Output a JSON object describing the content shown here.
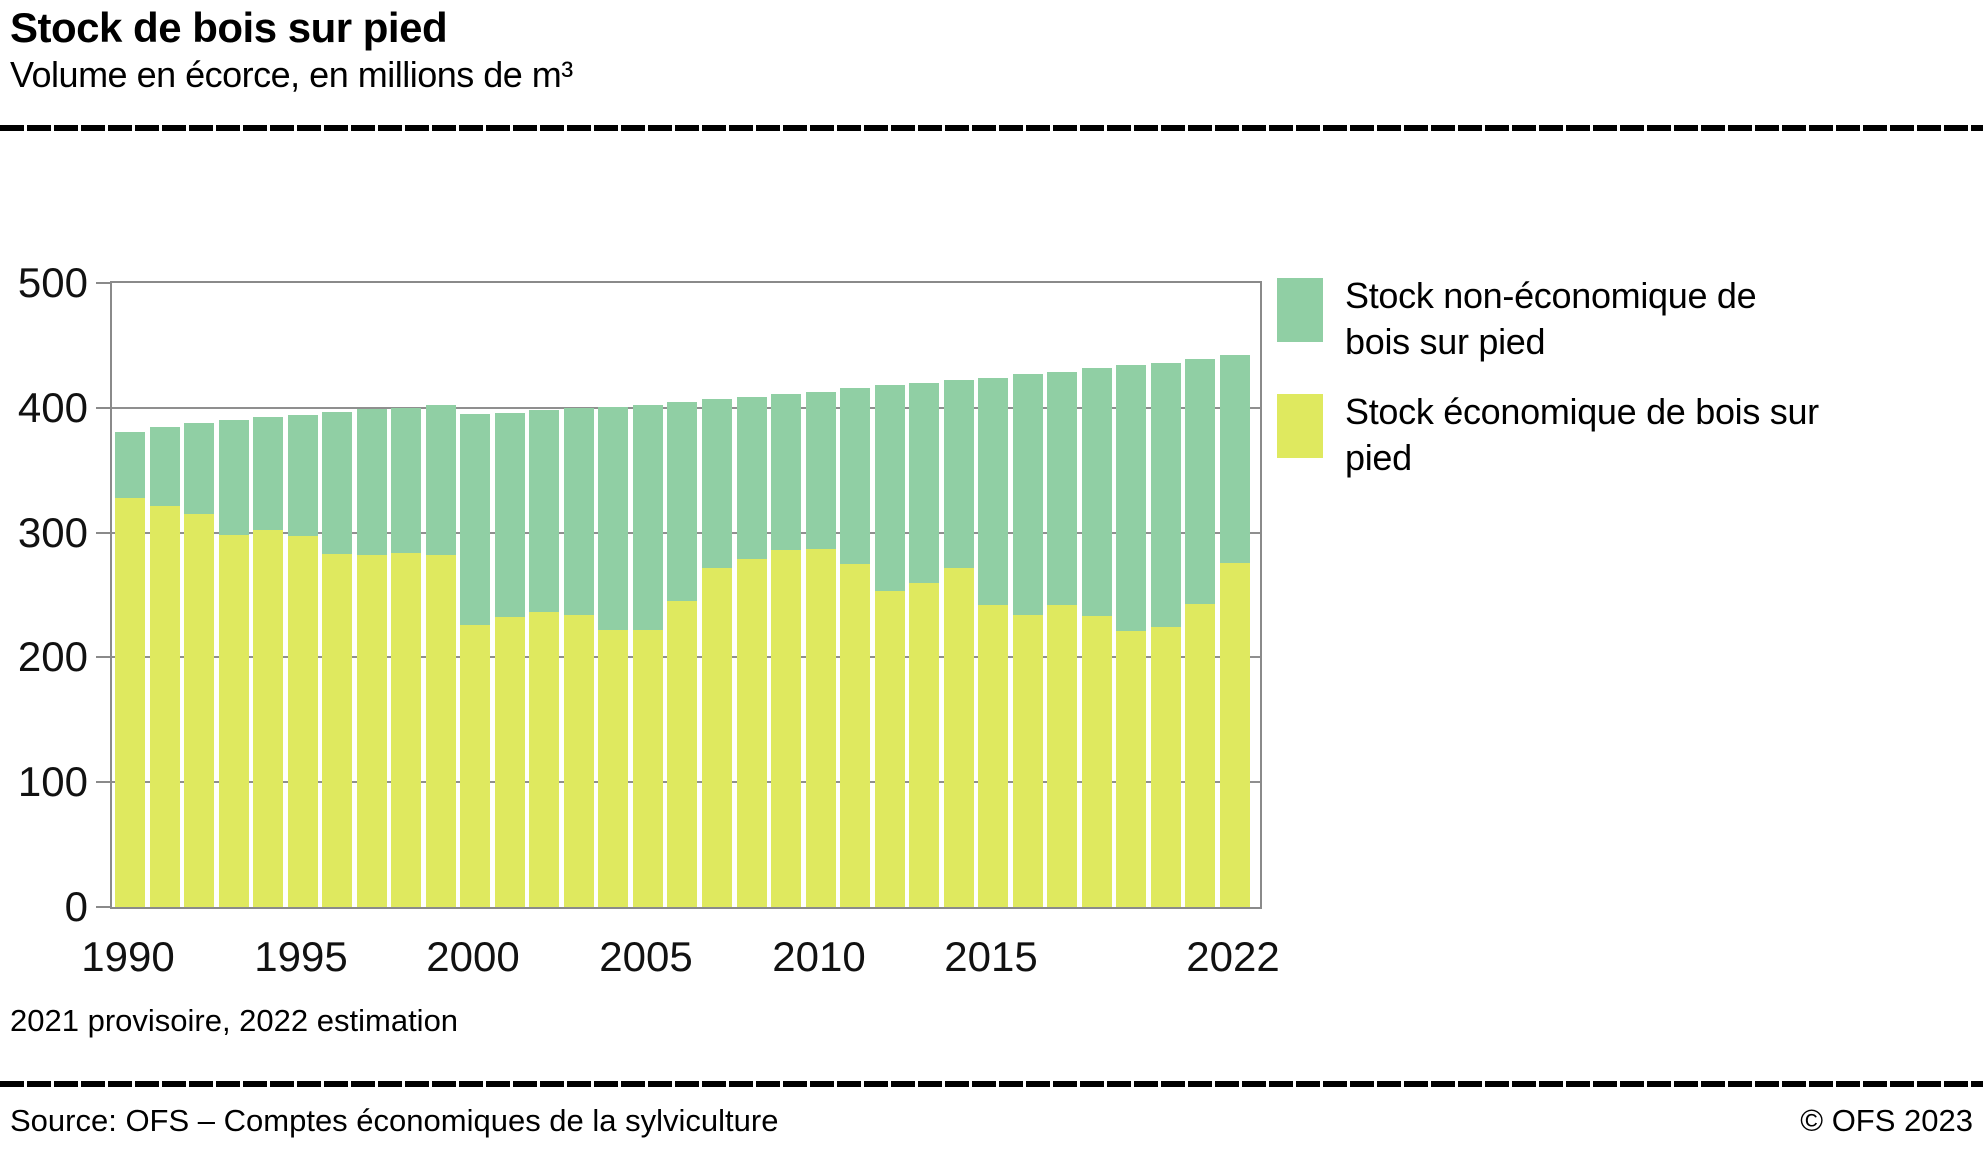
{
  "header": {
    "title": "Stock de bois sur pied",
    "subtitle": "Volume en écorce, en millions de m³"
  },
  "chart_data": {
    "type": "bar",
    "stacked": true,
    "title": "Stock de bois sur pied",
    "subtitle": "Volume en écorce, en millions de m³",
    "xlabel": "",
    "ylabel": "millions de m³",
    "ylim": [
      0,
      500
    ],
    "yticks": [
      0,
      100,
      200,
      300,
      400,
      500
    ],
    "grid": "horizontal",
    "legend_position": "right",
    "categories": [
      1990,
      1991,
      1992,
      1993,
      1994,
      1995,
      1996,
      1997,
      1998,
      1999,
      2000,
      2001,
      2002,
      2003,
      2004,
      2005,
      2006,
      2007,
      2008,
      2009,
      2010,
      2011,
      2012,
      2013,
      2014,
      2015,
      2016,
      2017,
      2018,
      2019,
      2020,
      2021,
      2022
    ],
    "xtick_labels": [
      1990,
      1995,
      2000,
      2005,
      2010,
      2015,
      2022
    ],
    "series": [
      {
        "name": "Stock économique de bois sur pied",
        "color": "#dfe95f",
        "values": [
          328,
          321,
          315,
          298,
          302,
          297,
          283,
          282,
          284,
          282,
          226,
          232,
          236,
          234,
          222,
          222,
          245,
          272,
          279,
          286,
          287,
          275,
          253,
          260,
          272,
          242,
          234,
          242,
          233,
          221,
          224,
          243,
          276
        ]
      },
      {
        "name": "Stock non-économique de bois sur pied",
        "color": "#90cfa4",
        "values": [
          53,
          64,
          73,
          92,
          91,
          97,
          114,
          117,
          116,
          120,
          169,
          164,
          162,
          166,
          179,
          180,
          160,
          135,
          130,
          125,
          126,
          141,
          165,
          160,
          150,
          182,
          193,
          187,
          199,
          213,
          212,
          196,
          166
        ]
      }
    ]
  },
  "legend": {
    "items": [
      {
        "label": "Stock non-économique de bois sur pied",
        "color": "#90cfa4"
      },
      {
        "label": "Stock économique de bois sur pied",
        "color": "#dfe95f"
      }
    ]
  },
  "note": "2021 provisoire, 2022 estimation",
  "footer": {
    "source": "Source: OFS – Comptes économiques de la sylviculture",
    "copyright": "© OFS 2023"
  }
}
